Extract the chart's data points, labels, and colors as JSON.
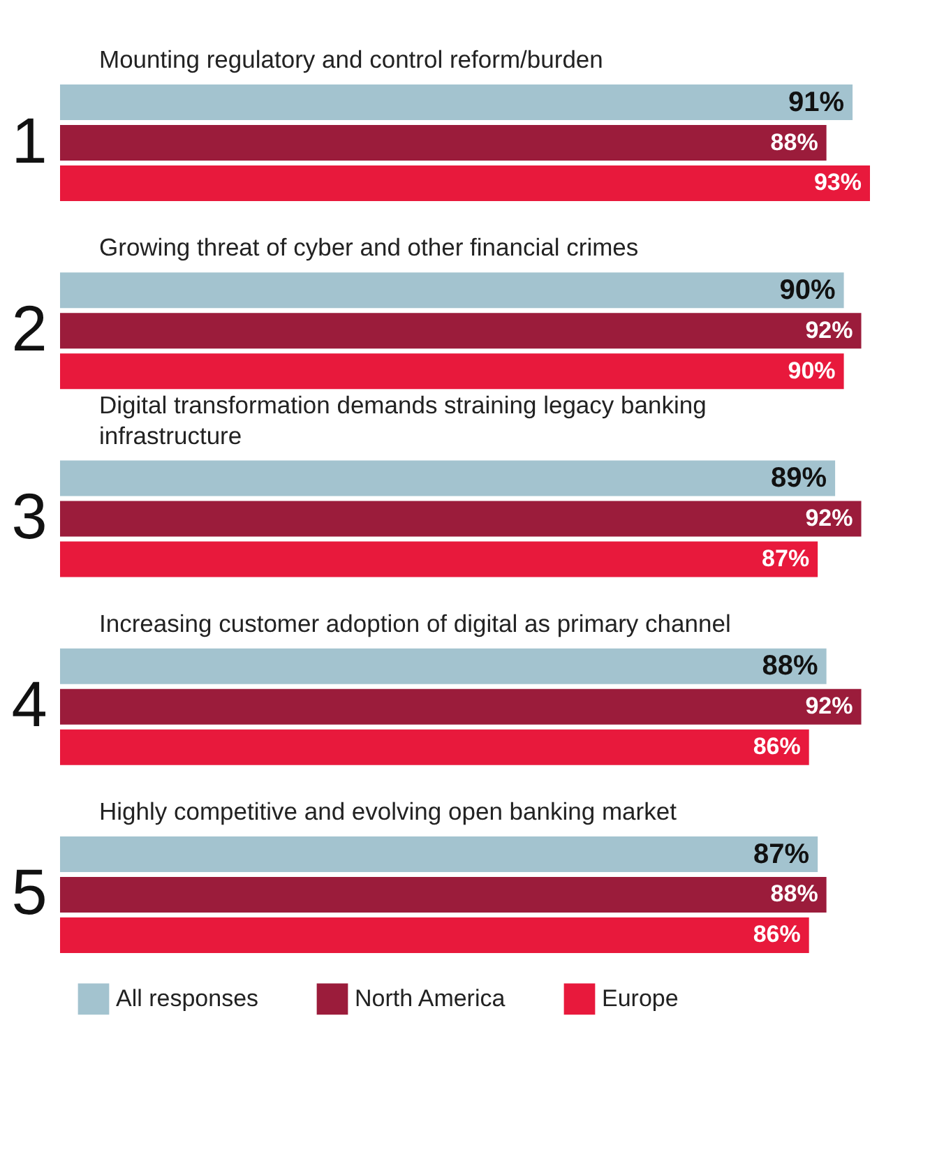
{
  "chart_data": {
    "type": "bar",
    "orientation": "horizontal",
    "categories": [
      "Mounting regulatory and control reform/burden",
      "Growing threat of cyber and other financial crimes",
      "Digital transformation demands straining legacy banking infrastructure",
      "Increasing customer adoption of digital as primary channel",
      "Highly competitive and evolving open banking market"
    ],
    "series": [
      {
        "name": "All responses",
        "color": "#a3c3cf",
        "values": [
          91,
          90,
          89,
          88,
          87
        ],
        "value_labels": [
          "91%",
          "90%",
          "89%",
          "88%",
          "87%"
        ]
      },
      {
        "name": "North America",
        "color": "#9b1c3b",
        "values": [
          88,
          92,
          92,
          92,
          88
        ],
        "value_labels": [
          "88%",
          "92%",
          "92%",
          "92%",
          "88%"
        ]
      },
      {
        "name": "Europe",
        "color": "#e8193c",
        "values": [
          93,
          90,
          87,
          86,
          86
        ],
        "value_labels": [
          "93%",
          "90%",
          "87%",
          "86%",
          "86%"
        ]
      }
    ],
    "annotations": [
      "1",
      "2",
      "3",
      "4",
      "5"
    ],
    "legend": "bottom left"
  }
}
